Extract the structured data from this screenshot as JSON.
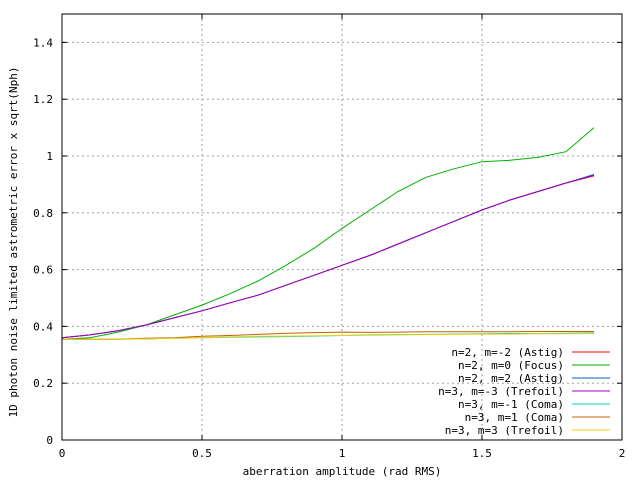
{
  "chart_data": {
    "type": "line",
    "xlabel": "aberration amplitude (rad RMS)",
    "ylabel": "1D photon noise limited astrometric error x sqrt(Nph)",
    "xlim": [
      0,
      2
    ],
    "ylim": [
      0,
      1.5
    ],
    "xticks": [
      0,
      0.5,
      1,
      1.5,
      2
    ],
    "xtick_labels": [
      "0",
      "0.5",
      "1",
      "1.5",
      "2"
    ],
    "yticks": [
      0,
      0.2,
      0.4,
      0.6,
      0.8,
      1.0,
      1.2,
      1.4
    ],
    "ytick_labels": [
      "0",
      "0.2",
      "0.4",
      "0.6",
      "0.8",
      "1",
      "1.2",
      "1.4"
    ],
    "grid": true,
    "legend_position": "bottom-right",
    "series": [
      {
        "name": "n=2, m=-2 (Astig)",
        "color": "#ff0000",
        "x": [
          0,
          0.1,
          0.2,
          0.3,
          0.4,
          0.5,
          0.6,
          0.7,
          0.8,
          0.9,
          1.0,
          1.1,
          1.2,
          1.3,
          1.4,
          1.5,
          1.6,
          1.7,
          1.8,
          1.9
        ],
        "values": [
          0.36,
          0.37,
          0.385,
          0.405,
          0.43,
          0.455,
          0.483,
          0.51,
          0.545,
          0.58,
          0.615,
          0.65,
          0.69,
          0.73,
          0.77,
          0.81,
          0.845,
          0.875,
          0.905,
          0.93
        ]
      },
      {
        "name": "n=2, m=0 (Focus)",
        "color": "#00b000",
        "x": [
          0,
          0.1,
          0.2,
          0.3,
          0.4,
          0.5,
          0.6,
          0.7,
          0.8,
          0.9,
          1.0,
          1.1,
          1.2,
          1.3,
          1.4,
          1.5,
          1.6,
          1.7,
          1.8,
          1.9
        ],
        "values": [
          0.355,
          0.36,
          0.38,
          0.405,
          0.44,
          0.475,
          0.515,
          0.56,
          0.615,
          0.675,
          0.745,
          0.81,
          0.875,
          0.925,
          0.955,
          0.98,
          0.985,
          0.995,
          1.015,
          1.1
        ]
      },
      {
        "name": "n=2, m=2 (Astig)",
        "color": "#0060c0",
        "x": [
          0,
          0.1,
          0.2,
          0.3,
          0.4,
          0.5,
          0.6,
          0.7,
          0.8,
          0.9,
          1.0,
          1.1,
          1.2,
          1.3,
          1.4,
          1.5,
          1.6,
          1.7,
          1.8,
          1.9
        ],
        "values": [
          0.36,
          0.37,
          0.385,
          0.405,
          0.43,
          0.455,
          0.483,
          0.51,
          0.545,
          0.58,
          0.615,
          0.65,
          0.69,
          0.73,
          0.77,
          0.81,
          0.845,
          0.875,
          0.905,
          0.935
        ]
      },
      {
        "name": "n=3, m=-3 (Trefoil)",
        "color": "#a000c0",
        "x": [
          0,
          0.1,
          0.2,
          0.3,
          0.4,
          0.5,
          0.6,
          0.7,
          0.8,
          0.9,
          1.0,
          1.1,
          1.2,
          1.3,
          1.4,
          1.5,
          1.6,
          1.7,
          1.8,
          1.9
        ],
        "values": [
          0.36,
          0.37,
          0.385,
          0.405,
          0.43,
          0.455,
          0.483,
          0.51,
          0.545,
          0.58,
          0.615,
          0.65,
          0.69,
          0.73,
          0.77,
          0.81,
          0.845,
          0.875,
          0.905,
          0.932
        ]
      },
      {
        "name": "n=3, m=-1 (Coma)",
        "color": "#00d0d0",
        "x": [
          0,
          0.1,
          0.2,
          0.3,
          0.4,
          0.5,
          0.6,
          0.7,
          0.8,
          0.9,
          1.0,
          1.1,
          1.2,
          1.3,
          1.4,
          1.5,
          1.6,
          1.7,
          1.8,
          1.9
        ],
        "values": [
          0.355,
          0.355,
          0.355,
          0.356,
          0.358,
          0.36,
          0.362,
          0.363,
          0.364,
          0.366,
          0.368,
          0.37,
          0.371,
          0.372,
          0.373,
          0.374,
          0.375,
          0.375,
          0.376,
          0.377
        ]
      },
      {
        "name": "n=3, m=1 (Coma)",
        "color": "#c06000",
        "x": [
          0,
          0.1,
          0.2,
          0.3,
          0.4,
          0.5,
          0.6,
          0.7,
          0.8,
          0.9,
          1.0,
          1.1,
          1.2,
          1.3,
          1.4,
          1.5,
          1.6,
          1.7,
          1.8,
          1.9
        ],
        "values": [
          0.355,
          0.355,
          0.355,
          0.358,
          0.36,
          0.365,
          0.368,
          0.372,
          0.376,
          0.378,
          0.38,
          0.379,
          0.38,
          0.381,
          0.381,
          0.381,
          0.381,
          0.382,
          0.382,
          0.382
        ]
      },
      {
        "name": "n=3, m=3 (Trefoil)",
        "color": "#f0d000",
        "x": [
          0,
          0.1,
          0.2,
          0.3,
          0.4,
          0.5,
          0.6,
          0.7,
          0.8,
          0.9,
          1.0,
          1.1,
          1.2,
          1.3,
          1.4,
          1.5,
          1.6,
          1.7,
          1.8,
          1.9
        ],
        "values": [
          0.355,
          0.355,
          0.355,
          0.356,
          0.358,
          0.36,
          0.363,
          0.365,
          0.366,
          0.367,
          0.368,
          0.369,
          0.37,
          0.371,
          0.372,
          0.373,
          0.373,
          0.374,
          0.374,
          0.375
        ]
      }
    ]
  }
}
